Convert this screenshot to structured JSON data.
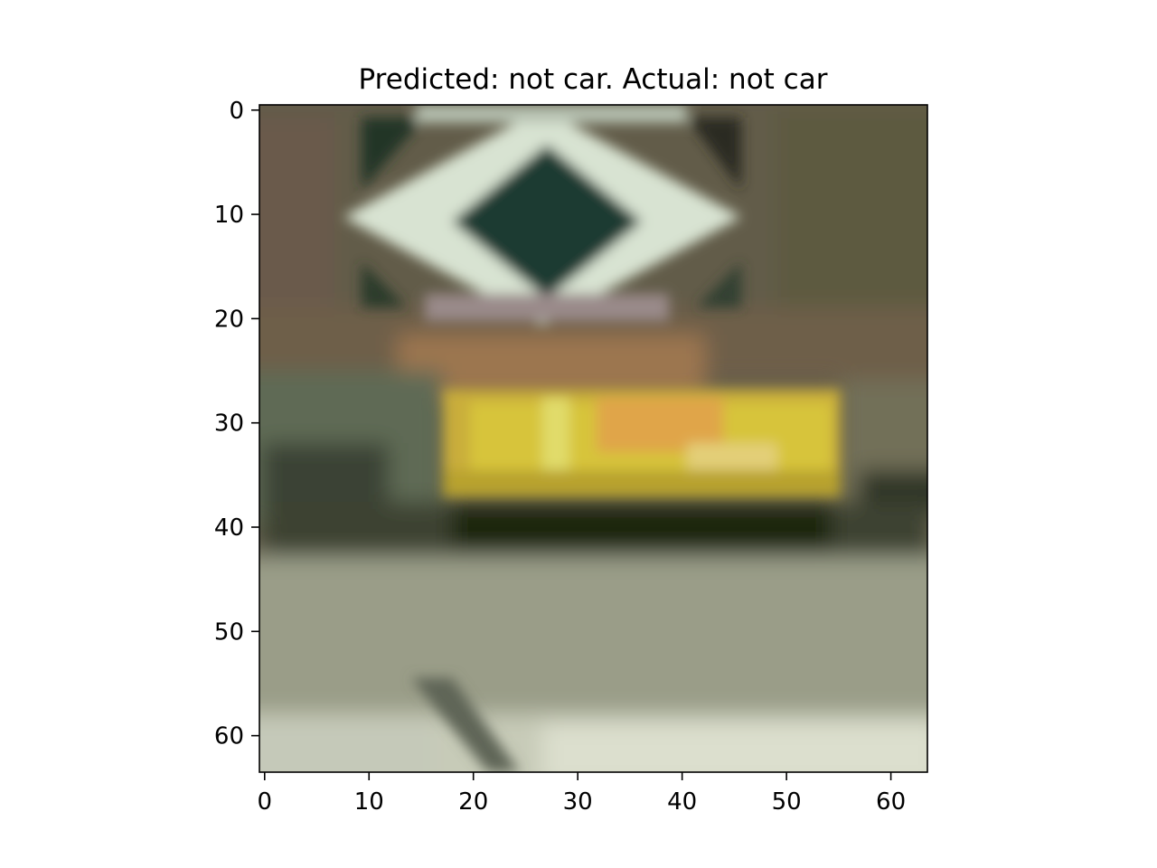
{
  "figure": {
    "title": "Predicted: not car. Actual: not car"
  },
  "image": {
    "description_scene": "blurry 64x64 photo patch: dark green road sign with white diamond at top, yellow vehicle band in middle, grey road at bottom"
  },
  "axes": {
    "x_ticks": [
      0,
      10,
      20,
      30,
      40,
      50,
      60
    ],
    "y_ticks": [
      0,
      10,
      20,
      30,
      40,
      50,
      60
    ],
    "x_range": [
      -0.5,
      63.5
    ],
    "y_range": [
      -0.5,
      63.5
    ],
    "y_inverted": true,
    "grid": false
  },
  "colors": {
    "frame": "#000000",
    "background_top": "#655f4c",
    "sign_dark": "#1f3a30",
    "sign_white": "#d8e3d2",
    "vehicle_yellow": "#d7c43a",
    "vehicle_orange": "#e0a548",
    "road_grey": "#9a9d88",
    "road_light": "#cfd3c2",
    "shadow_dark": "#1e2611"
  }
}
